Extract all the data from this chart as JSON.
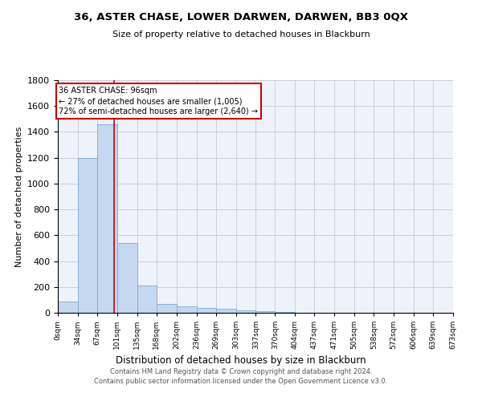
{
  "title": "36, ASTER CHASE, LOWER DARWEN, DARWEN, BB3 0QX",
  "subtitle": "Size of property relative to detached houses in Blackburn",
  "xlabel": "Distribution of detached houses by size in Blackburn",
  "ylabel": "Number of detached properties",
  "footer_line1": "Contains HM Land Registry data © Crown copyright and database right 2024.",
  "footer_line2": "Contains public sector information licensed under the Open Government Licence v3.0.",
  "bin_edges": [
    0,
    34,
    67,
    101,
    135,
    168,
    202,
    236,
    269,
    303,
    337,
    370,
    404,
    437,
    471,
    505,
    538,
    572,
    606,
    639,
    673
  ],
  "bar_heights": [
    90,
    1200,
    1460,
    540,
    210,
    70,
    50,
    40,
    30,
    20,
    10,
    5,
    3,
    2,
    1,
    1,
    0,
    0,
    0,
    0
  ],
  "bar_color": "#c5d8f0",
  "bar_edgecolor": "#7aadd4",
  "property_size": 96,
  "red_line_color": "#cc0000",
  "annotation_line1": "36 ASTER CHASE: 96sqm",
  "annotation_line2": "← 27% of detached houses are smaller (1,005)",
  "annotation_line3": "72% of semi-detached houses are larger (2,640) →",
  "annotation_box_edgecolor": "#cc0000",
  "ylim": [
    0,
    1800
  ],
  "yticks": [
    0,
    200,
    400,
    600,
    800,
    1000,
    1200,
    1400,
    1600,
    1800
  ],
  "grid_color": "#c8c8d8",
  "background_color": "#eef2fb",
  "fig_background": "#ffffff",
  "title_fontsize": 9.5,
  "subtitle_fontsize": 8,
  "ylabel_fontsize": 8,
  "xlabel_fontsize": 8.5,
  "ytick_fontsize": 8,
  "xtick_fontsize": 6.5,
  "footer_fontsize": 6,
  "annotation_fontsize": 7
}
